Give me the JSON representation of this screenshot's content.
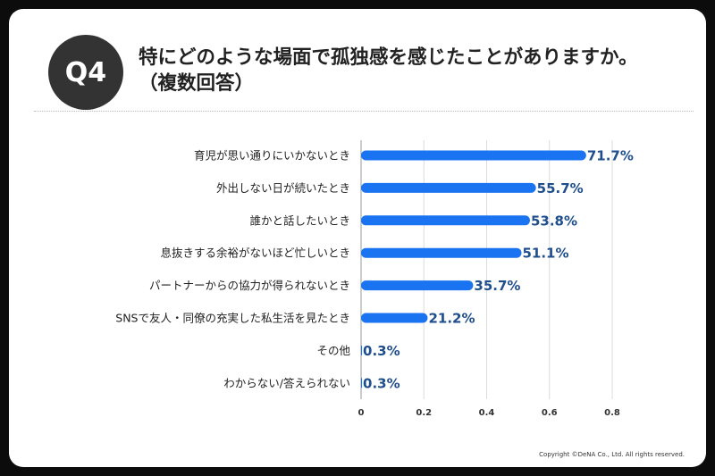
{
  "header": {
    "badge": "Q4",
    "title_line1": "特にどのような場面で孤独感を感じたことがありますか。",
    "title_line2": "（複数回答）"
  },
  "footer": {
    "copyright": "Copyright ©DeNA Co., Ltd. All rights reserved."
  },
  "colors": {
    "bar": "#1a73f0",
    "value_label": "#1f4e8c",
    "badge_bg": "#333333",
    "frame": "#0c0c0c"
  },
  "chart_data": {
    "type": "bar",
    "orientation": "horizontal",
    "categories": [
      "育児が思い通りにいかないとき",
      "外出しない日が続いたとき",
      "誰かと話したいとき",
      "息抜きする余裕がないほど忙しいとき",
      "パートナーからの協力が得られないとき",
      "SNSで友人・同僚の充実した私生活を見たとき",
      "その他",
      "わからない/答えられない"
    ],
    "values": [
      0.717,
      0.557,
      0.538,
      0.511,
      0.357,
      0.212,
      0.003,
      0.003
    ],
    "value_labels": [
      "71.7%",
      "55.7%",
      "53.8%",
      "51.1%",
      "35.7%",
      "21.2%",
      "0.3%",
      "0.3%"
    ],
    "xlim": [
      0,
      0.8
    ],
    "xticks": [
      "0",
      "0.2",
      "0.4",
      "0.6",
      "0.8"
    ],
    "grid": "vertical",
    "legend": "none"
  }
}
